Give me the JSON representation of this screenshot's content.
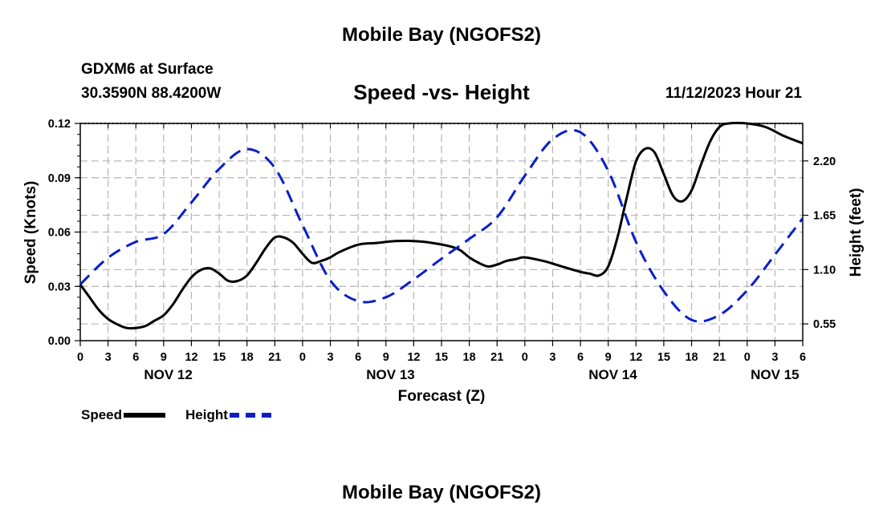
{
  "header": {
    "main_title": "Mobile Bay (NGOFS2)",
    "station_id": "GDXM6 at Surface",
    "station_coords": "30.3590N  88.4200W",
    "chart_title": "Speed -vs- Height",
    "valid_time": "11/12/2023 Hour 21"
  },
  "footer": {
    "main_title": "Mobile Bay (NGOFS2)"
  },
  "legend": {
    "speed_label": "Speed",
    "height_label": "Height"
  },
  "colors": {
    "speed": "#000000",
    "height": "#0a1ec8",
    "grid": "#b4b4b4"
  },
  "chart_data": {
    "type": "line",
    "title": "Speed -vs- Height",
    "xlabel": "Forecast (Z)",
    "ylabel": "Speed (Knots)",
    "y2label": "Height (feet)",
    "x_unit": "forecast hour",
    "xlim": [
      0,
      78
    ],
    "ylim": [
      0,
      0.12
    ],
    "y2lim": [
      0.38,
      2.58
    ],
    "x_ticks": [
      0,
      3,
      6,
      9,
      12,
      15,
      18,
      21,
      24,
      27,
      30,
      33,
      36,
      39,
      42,
      45,
      48,
      51,
      54,
      57,
      60,
      63,
      66,
      69,
      72,
      75,
      78
    ],
    "x_tick_labels": [
      "0",
      "3",
      "6",
      "9",
      "12",
      "15",
      "18",
      "21",
      "0",
      "3",
      "6",
      "9",
      "12",
      "15",
      "18",
      "21",
      "0",
      "3",
      "6",
      "9",
      "12",
      "15",
      "18",
      "21",
      "0",
      "3",
      "6"
    ],
    "date_labels": [
      {
        "x": 9.5,
        "label": "NOV 12"
      },
      {
        "x": 33.5,
        "label": "NOV 13"
      },
      {
        "x": 57.5,
        "label": "NOV 14"
      },
      {
        "x": 75,
        "label": "NOV 15"
      }
    ],
    "y_ticks": [
      0,
      0.03,
      0.06,
      0.09,
      0.12
    ],
    "y_tick_labels": [
      "0.00",
      "0.03",
      "0.06",
      "0.09",
      "0.12"
    ],
    "y2_ticks": [
      0.55,
      1.1,
      1.65,
      2.2
    ],
    "y2_tick_labels": [
      "0.55",
      "1.10",
      "1.65",
      "2.20"
    ],
    "grid": true,
    "series": [
      {
        "name": "Speed",
        "axis": "left",
        "style": "solid",
        "x": [
          0,
          1,
          2,
          3,
          4,
          5,
          6,
          7,
          8,
          9,
          10,
          11,
          12,
          13,
          14,
          15,
          16,
          17,
          18,
          19,
          20,
          21,
          22,
          23,
          24,
          25,
          26,
          27,
          28,
          30,
          32,
          34,
          36,
          38,
          40,
          41,
          42,
          43,
          44,
          45,
          46,
          47,
          48,
          50,
          52,
          54,
          55,
          56,
          57,
          58,
          59,
          60,
          61,
          62,
          63,
          64,
          65,
          66,
          67,
          68,
          69,
          70,
          72,
          74,
          76,
          78
        ],
        "values": [
          0.031,
          0.024,
          0.017,
          0.012,
          0.009,
          0.007,
          0.007,
          0.008,
          0.011,
          0.014,
          0.02,
          0.028,
          0.035,
          0.039,
          0.04,
          0.037,
          0.033,
          0.033,
          0.036,
          0.043,
          0.051,
          0.057,
          0.057,
          0.054,
          0.048,
          0.043,
          0.044,
          0.046,
          0.049,
          0.053,
          0.054,
          0.055,
          0.055,
          0.054,
          0.052,
          0.05,
          0.046,
          0.043,
          0.041,
          0.042,
          0.044,
          0.045,
          0.046,
          0.044,
          0.041,
          0.038,
          0.037,
          0.036,
          0.041,
          0.057,
          0.079,
          0.099,
          0.106,
          0.104,
          0.092,
          0.08,
          0.077,
          0.083,
          0.097,
          0.11,
          0.118,
          0.12,
          0.12,
          0.118,
          0.113,
          0.109
        ]
      },
      {
        "name": "Height",
        "axis": "right",
        "style": "dashed",
        "x": [
          0,
          3,
          6,
          9,
          12,
          15,
          18,
          21,
          24,
          27,
          30,
          33,
          36,
          39,
          42,
          45,
          48,
          51,
          54,
          57,
          60,
          63,
          66,
          69,
          72,
          75,
          78
        ],
        "values": [
          0.95,
          1.22,
          1.38,
          1.46,
          1.78,
          2.12,
          2.32,
          2.13,
          1.55,
          0.99,
          0.78,
          0.82,
          1.0,
          1.21,
          1.41,
          1.63,
          2.05,
          2.42,
          2.49,
          2.1,
          1.38,
          0.88,
          0.59,
          0.64,
          0.89,
          1.25,
          1.62
        ]
      }
    ]
  }
}
